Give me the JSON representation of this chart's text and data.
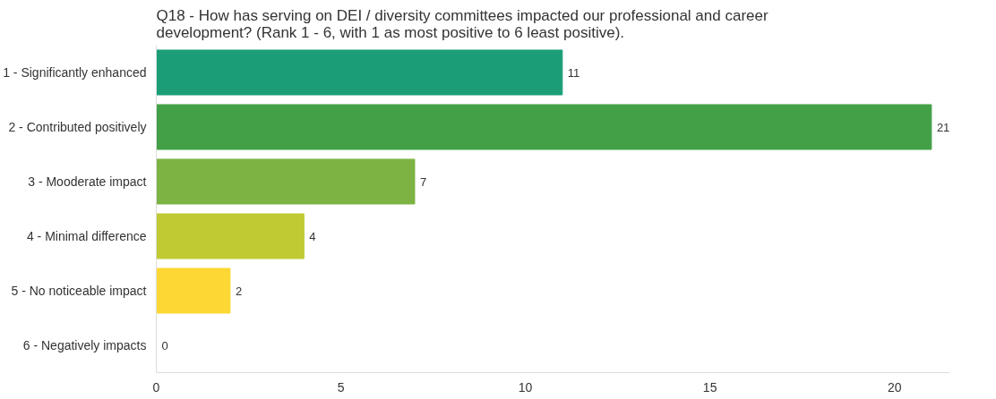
{
  "chart_data": {
    "type": "bar",
    "orientation": "horizontal",
    "title": "Q18 - How has serving on DEI / diversity committees impacted our professional and career development? (Rank 1 - 6, with 1 as most positive to 6 least positive).",
    "categories": [
      "1 - Significantly enhanced",
      "2 - Contributed positively",
      "3 - Mooderate impact",
      "4 - Minimal difference",
      "5 - No noticeable impact",
      "6 - Negatively impacts"
    ],
    "values": [
      11,
      21,
      7,
      4,
      2,
      0
    ],
    "colors": [
      "#1b9e77",
      "#43a047",
      "#7cb342",
      "#c0ca33",
      "#fdd835",
      "#e6dc6a"
    ],
    "xlim": [
      0,
      21.5
    ],
    "xticks": [
      0,
      5,
      10,
      15,
      20
    ],
    "grid": false,
    "data_labels": true
  }
}
